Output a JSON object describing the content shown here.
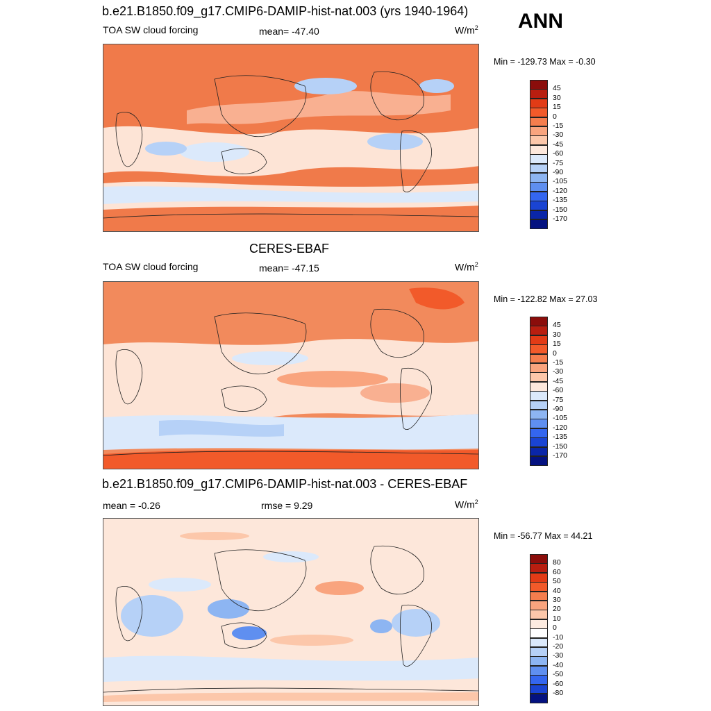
{
  "season": "ANN",
  "panels": [
    {
      "title": "b.e21.B1850.f09_g17.CMIP6-DAMIP-hist-nat.003 (yrs 1940-1964)",
      "left_label": "TOA SW cloud forcing",
      "center_label": "mean= -47.40",
      "units_base": "W/m",
      "units_exp": "2",
      "minmax": "Min = -129.73 Max =  -0.30",
      "levels": [
        "45",
        "30",
        "15",
        "0",
        "-15",
        "-30",
        "-45",
        "-60",
        "-75",
        "-90",
        "-105",
        "-120",
        "-135",
        "-150",
        "-170"
      ],
      "colors": [
        "#8b0d0b",
        "#b81e10",
        "#e23b16",
        "#f25a2a",
        "#f57e4e",
        "#f9a47e",
        "#fcc7aa",
        "#fde8dc",
        "#dbe9fb",
        "#b6d1f7",
        "#8db5f2",
        "#5f8ff0",
        "#3466ef",
        "#1a44d3",
        "#0a26a8",
        "#041280"
      ]
    },
    {
      "title": "CERES-EBAF",
      "left_label": "TOA SW cloud forcing",
      "center_label": "mean= -47.15",
      "units_base": "W/m",
      "units_exp": "2",
      "minmax": "Min = -122.82 Max =  27.03",
      "levels": [
        "45",
        "30",
        "15",
        "0",
        "-15",
        "-30",
        "-45",
        "-60",
        "-75",
        "-90",
        "-105",
        "-120",
        "-135",
        "-150",
        "-170"
      ],
      "colors": [
        "#8b0d0b",
        "#b81e10",
        "#e23b16",
        "#f25a2a",
        "#f57e4e",
        "#f9a47e",
        "#fcc7aa",
        "#fde8dc",
        "#dbe9fb",
        "#b6d1f7",
        "#8db5f2",
        "#5f8ff0",
        "#3466ef",
        "#1a44d3",
        "#0a26a8",
        "#041280"
      ]
    },
    {
      "title": "b.e21.B1850.f09_g17.CMIP6-DAMIP-hist-nat.003 - CERES-EBAF",
      "left_label": "mean =  -0.26",
      "center_label": "rmse =   9.29",
      "units_base": "W/m",
      "units_exp": "2",
      "minmax": "Min = -56.77 Max =  44.21",
      "levels": [
        "80",
        "60",
        "50",
        "40",
        "30",
        "20",
        "10",
        "0",
        "-10",
        "-20",
        "-30",
        "-40",
        "-50",
        "-60",
        "-80"
      ],
      "colors": [
        "#8b0d0b",
        "#b81e10",
        "#e23b16",
        "#f25a2a",
        "#f57e4e",
        "#f9a47e",
        "#fcc7aa",
        "#fdebe0",
        "#ffffff",
        "#dbe9fb",
        "#b6d1f7",
        "#8db5f2",
        "#5f8ff0",
        "#3466ef",
        "#1a44d3",
        "#041280"
      ]
    }
  ]
}
